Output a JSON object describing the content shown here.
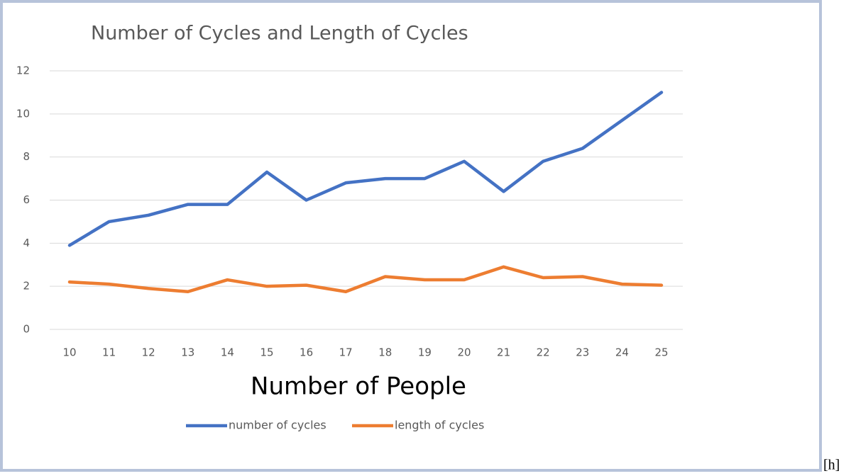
{
  "chart_data": {
    "type": "line",
    "title": "Number of Cycles and Length of Cycles",
    "x_label": "Number of People",
    "categories": [
      "10",
      "11",
      "12",
      "13",
      "14",
      "15",
      "16",
      "17",
      "18",
      "19",
      "20",
      "21",
      "22",
      "23",
      "24",
      "25"
    ],
    "series": [
      {
        "name": "number of cycles",
        "color": "#4472c4",
        "values": [
          3.9,
          5.0,
          5.3,
          5.8,
          5.8,
          7.3,
          6.0,
          6.8,
          7.0,
          7.0,
          7.8,
          6.4,
          7.8,
          8.4,
          9.7,
          11.0
        ]
      },
      {
        "name": "length of cycles",
        "color": "#ed7d31",
        "values": [
          2.2,
          2.1,
          1.9,
          1.75,
          2.3,
          2.0,
          2.05,
          1.75,
          2.45,
          2.3,
          2.3,
          2.9,
          2.4,
          2.45,
          2.1,
          2.05
        ]
      }
    ],
    "ylim": [
      0,
      12
    ],
    "yticks": [
      0,
      2,
      4,
      6,
      8,
      10,
      12
    ],
    "grid": true,
    "legend": "bottom"
  },
  "caption": "[h]"
}
